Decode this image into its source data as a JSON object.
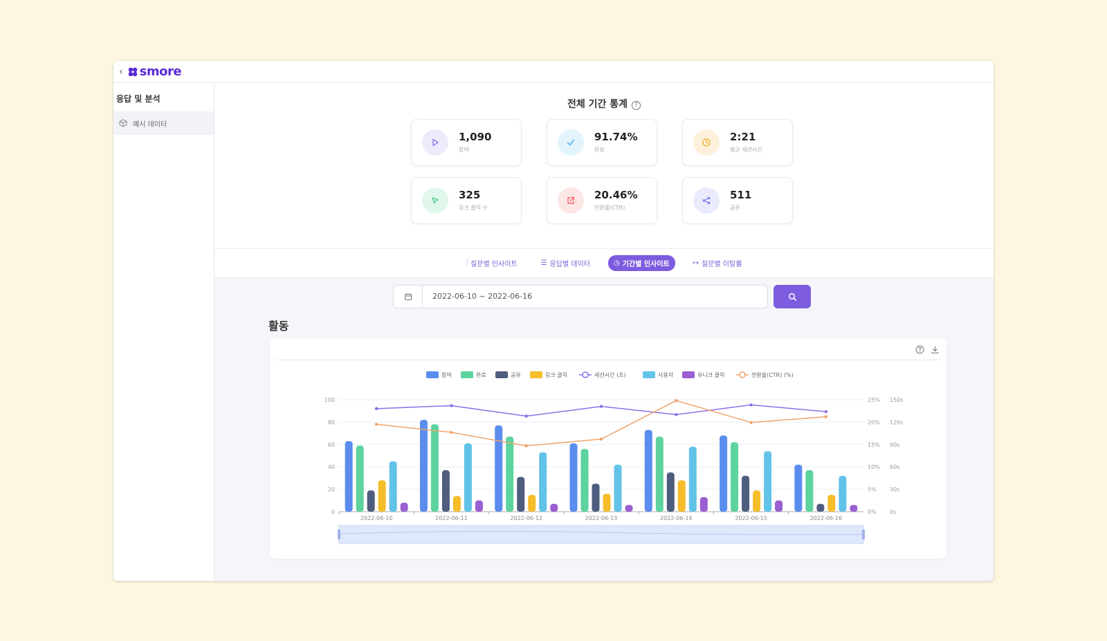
{
  "app": {
    "brand": "smore",
    "back_label": "‹"
  },
  "sidebar": {
    "title": "응답 및 분석",
    "items": [
      {
        "label": "예시 데이터",
        "icon": "cube-icon"
      }
    ]
  },
  "stats": {
    "title": "전체 기간 통계",
    "cards": [
      {
        "value": "1,090",
        "label": "참여",
        "icon": "play-icon",
        "color": "#8b7be8",
        "bg": "#ecebfb"
      },
      {
        "value": "91.74%",
        "label": "완료",
        "icon": "check-icon",
        "color": "#4cb8e8",
        "bg": "#e3f4fc"
      },
      {
        "value": "2:21",
        "label": "평균 세션시간",
        "icon": "clock-icon",
        "color": "#f0b53a",
        "bg": "#fdf1dc"
      },
      {
        "value": "325",
        "label": "링크 클릭 수",
        "icon": "cursor-icon",
        "color": "#4fcf8f",
        "bg": "#e2f7ec"
      },
      {
        "value": "20.46%",
        "label": "전환율(CTR)",
        "icon": "external-link-icon",
        "color": "#ef6a6a",
        "bg": "#fde6e6"
      },
      {
        "value": "511",
        "label": "공유",
        "icon": "share-icon",
        "color": "#7a7ef0",
        "bg": "#e9eafc"
      }
    ]
  },
  "tabs": [
    {
      "label": "질문별 인사이트",
      "icon": "bar-chart-icon",
      "glyph": "⫶",
      "active": false
    },
    {
      "label": "응답별 데이터",
      "icon": "list-icon",
      "glyph": "☰",
      "active": false
    },
    {
      "label": "기간별 인사이트",
      "icon": "clock-icon",
      "glyph": "◷",
      "active": true
    },
    {
      "label": "질문별 이탈률",
      "icon": "exit-icon",
      "glyph": "↦",
      "active": false
    }
  ],
  "date_range": {
    "value": "2022-06-10 ~ 2022-06-16"
  },
  "activity": {
    "title": "활동"
  },
  "colors": {
    "accent": "#7d5ce0"
  },
  "chart_data": {
    "type": "bar",
    "categories": [
      "2022-06-10",
      "2022-06-11",
      "2022-06-12",
      "2022-06-13",
      "2022-06-14",
      "2022-06-15",
      "2022-06-16"
    ],
    "legend_position": "top-center",
    "grid": true,
    "left_axis": {
      "ylim": [
        0,
        100
      ],
      "ticks": [
        "0",
        "20",
        "40",
        "60",
        "80",
        "100"
      ]
    },
    "right_axis_pct": {
      "ylim": [
        0,
        25
      ],
      "ticks": [
        "0%",
        "5%",
        "10%",
        "15%",
        "20%",
        "25%"
      ]
    },
    "right_axis_sec": {
      "ylim": [
        0,
        150
      ],
      "ticks": [
        "0s",
        "30s",
        "60s",
        "90s",
        "120s",
        "150s"
      ]
    },
    "series": [
      {
        "name": "참여",
        "type": "bar",
        "color": "#5b8def",
        "values": [
          63,
          82,
          77,
          61,
          73,
          68,
          42
        ]
      },
      {
        "name": "완료",
        "type": "bar",
        "color": "#5dd39e",
        "values": [
          59,
          78,
          67,
          56,
          67,
          62,
          37
        ]
      },
      {
        "name": "공유",
        "type": "bar",
        "color": "#4e5d7e",
        "values": [
          19,
          37,
          31,
          25,
          35,
          32,
          7
        ]
      },
      {
        "name": "링크 클릭",
        "type": "bar",
        "color": "#f5bd2a",
        "values": [
          28,
          14,
          15,
          16,
          28,
          19,
          15
        ]
      },
      {
        "name": "세션시간 (초)",
        "type": "line",
        "axis": "seconds",
        "color": "#8b6ee8",
        "values": [
          138,
          142,
          128,
          141,
          130,
          143,
          134
        ]
      },
      {
        "name": "사용자",
        "type": "bar",
        "color": "#62c3e8",
        "values": [
          45,
          61,
          53,
          42,
          58,
          54,
          32
        ]
      },
      {
        "name": "유니크 클릭",
        "type": "bar",
        "color": "#9a5fd0",
        "values": [
          8,
          10,
          7,
          6,
          13,
          10,
          6
        ]
      },
      {
        "name": "전환율(CTR) (%)",
        "type": "line",
        "axis": "percent",
        "color": "#f0a46a",
        "values": [
          19.5,
          17.7,
          14.7,
          16.2,
          24.8,
          19.9,
          21.2
        ]
      }
    ]
  }
}
